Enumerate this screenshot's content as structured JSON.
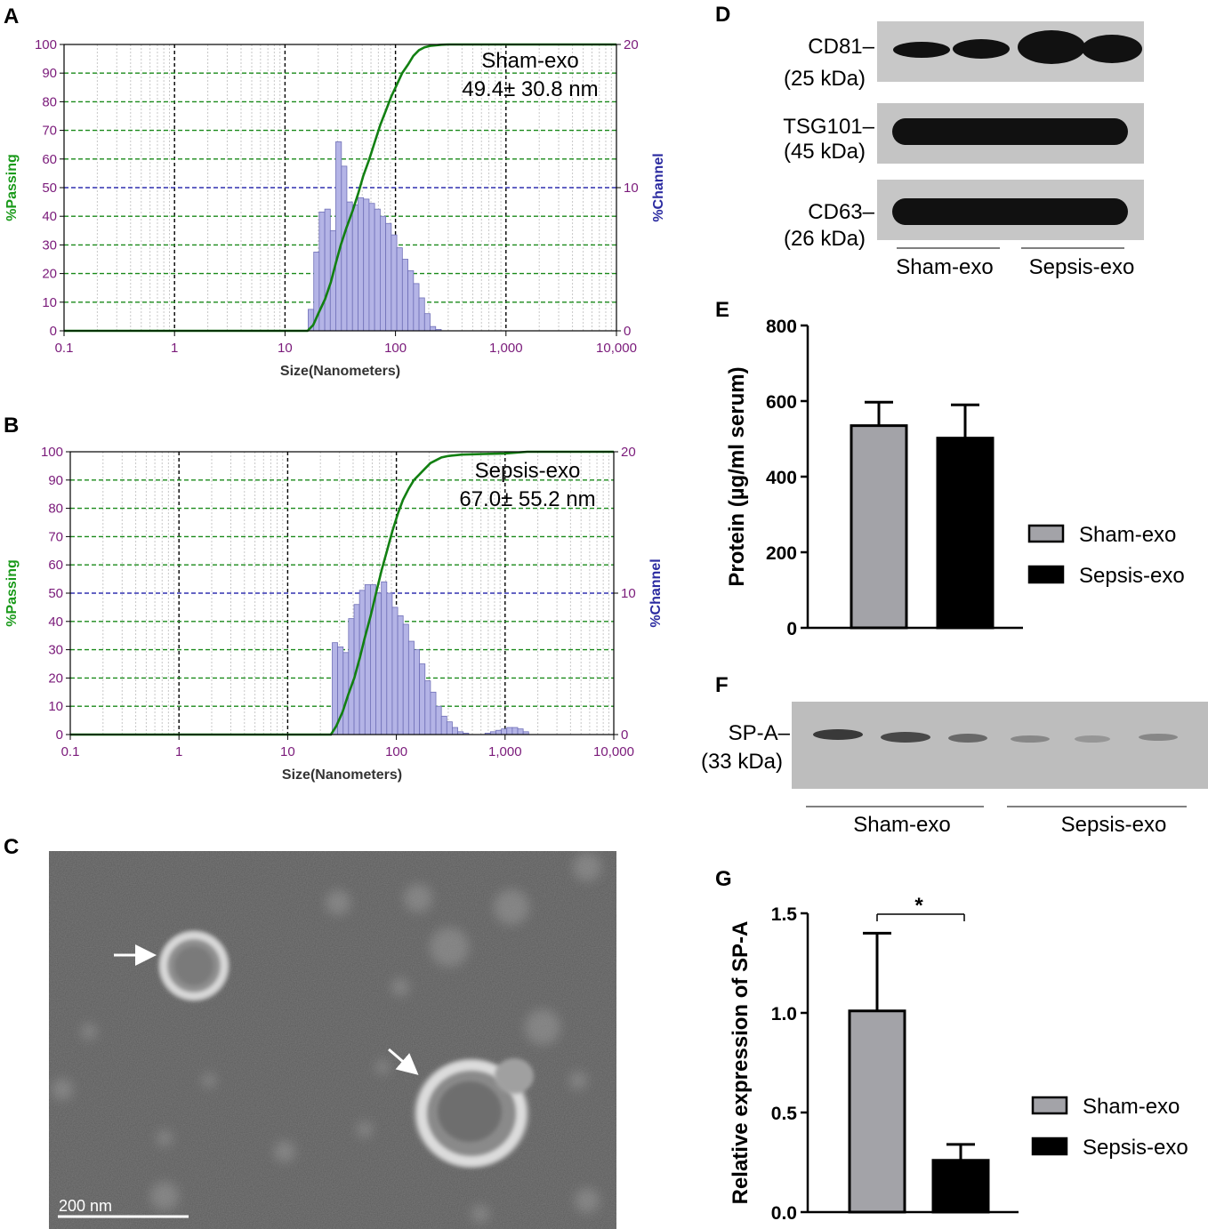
{
  "chart_data": [
    {
      "panel": "A",
      "type": "bar",
      "xscale": "log",
      "xlim": [
        0.1,
        10000
      ],
      "xticks": [
        "0.1",
        "1",
        "10",
        "100",
        "1,000",
        "10,000"
      ],
      "xlabel": "Size(Nanometers)",
      "ylabel_left": "%Passing",
      "ylim_left": [
        0,
        100
      ],
      "yticks_left": [
        "0",
        "10",
        "20",
        "30",
        "40",
        "50",
        "60",
        "70",
        "80",
        "90",
        "100"
      ],
      "ylabel_right": "%Channel",
      "ylim_right": [
        0,
        20
      ],
      "yticks_right": [
        "0",
        "10",
        "20"
      ],
      "annotation": [
        "Sham-exo",
        "49.4± 30.8 nm"
      ],
      "grid": true,
      "histogram": {
        "bin_edges": [
          16.2,
          18.2,
          20.4,
          22.9,
          25.7,
          28.8,
          32.4,
          36.3,
          40.8,
          45.8,
          51.4,
          57.7,
          64.7,
          72.7,
          81.6,
          91.6,
          102.8,
          115.4,
          129.6,
          145.5,
          163.3,
          183.3,
          205.8,
          231.0,
          259.4
        ],
        "channel_percent": [
          1.5,
          5.5,
          8.3,
          8.5,
          7.0,
          13.2,
          11.5,
          9.0,
          8.8,
          9.3,
          9.2,
          8.9,
          8.5,
          8.0,
          7.5,
          6.7,
          5.8,
          5.0,
          4.2,
          3.3,
          2.3,
          1.2,
          0.3,
          0.1
        ]
      },
      "cumulative": {
        "x": [
          0.1,
          16,
          18,
          20,
          23,
          26,
          29,
          32,
          36,
          41,
          46,
          51,
          58,
          65,
          73,
          82,
          92,
          103,
          115,
          130,
          145,
          163,
          183,
          206,
          231,
          260,
          300,
          400,
          600,
          1000,
          10000
        ],
        "y": [
          0,
          0,
          2,
          6,
          11,
          17,
          24,
          30,
          36,
          42,
          48,
          54,
          60,
          66,
          72,
          77,
          82,
          86,
          90,
          93,
          96,
          98,
          99,
          99.5,
          99.7,
          99.9,
          100,
          100,
          100,
          100,
          100
        ]
      }
    },
    {
      "panel": "B",
      "type": "bar",
      "xscale": "log",
      "xlim": [
        0.1,
        10000
      ],
      "xticks": [
        "0.1",
        "1",
        "10",
        "100",
        "1,000",
        "10,000"
      ],
      "xlabel": "Size(Nanometers)",
      "ylabel_left": "%Passing",
      "ylim_left": [
        0,
        100
      ],
      "yticks_left": [
        "0",
        "10",
        "20",
        "30",
        "40",
        "50",
        "60",
        "70",
        "80",
        "90",
        "100"
      ],
      "ylabel_right": "%Channel",
      "ylim_right": [
        0,
        20
      ],
      "yticks_right": [
        "0",
        "10",
        "20"
      ],
      "annotation": [
        "Sepsis-exo",
        "67.0± 55.2 nm"
      ],
      "grid": true,
      "histogram": {
        "bin_edges": [
          25.7,
          28.8,
          32.4,
          36.3,
          40.8,
          45.8,
          51.4,
          57.7,
          64.7,
          72.7,
          81.6,
          91.6,
          102.8,
          115.4,
          129.6,
          145.5,
          163.3,
          183.3,
          205.8,
          231.0,
          259.4,
          291.1,
          326.7,
          366.8,
          411.7,
          462.1,
          518.7,
          582.2,
          653.5,
          733.6,
          823.4,
          924.3,
          1037.5,
          1164.5,
          1307.1,
          1467.2,
          1646.9
        ],
        "channel_percent": [
          6.5,
          6.2,
          5.8,
          8.2,
          9.2,
          10.2,
          10.6,
          10.6,
          10.0,
          10.8,
          10.0,
          9.0,
          8.4,
          7.8,
          6.6,
          6.0,
          5.0,
          3.8,
          3.0,
          2.0,
          1.3,
          0.9,
          0.5,
          0.2,
          0.1,
          0,
          0,
          0,
          0.1,
          0.2,
          0.3,
          0.4,
          0.5,
          0.5,
          0.4,
          0.2
        ]
      },
      "cumulative": {
        "x": [
          0.1,
          25,
          28,
          32,
          36,
          41,
          46,
          51,
          58,
          65,
          73,
          82,
          92,
          103,
          115,
          130,
          145,
          163,
          183,
          206,
          231,
          260,
          300,
          400,
          600,
          1000,
          1600,
          10000
        ],
        "y": [
          0,
          0,
          3,
          8,
          14,
          20,
          27,
          34,
          42,
          50,
          58,
          65,
          72,
          78,
          83,
          87,
          90,
          92,
          94,
          96,
          97,
          98,
          98.5,
          99,
          99.2,
          99.4,
          100,
          100
        ]
      }
    },
    {
      "panel": "E",
      "type": "bar",
      "ylabel": "Protein (µg/ml serum)",
      "ylim": [
        0,
        800
      ],
      "yticks": [
        "0",
        "200",
        "400",
        "600",
        "800"
      ],
      "categories": [
        "Sham-exo",
        "Sepsis-exo"
      ],
      "values": [
        535,
        502
      ],
      "errors": [
        62,
        88
      ],
      "colors": [
        "#a3a3a8",
        "#000000"
      ],
      "legend": [
        "Sham-exo",
        "Sepsis-exo"
      ],
      "legend_placement": "right"
    },
    {
      "panel": "G",
      "type": "bar",
      "ylabel": "Relative expression of SP-A",
      "ylim": [
        0,
        1.5
      ],
      "yticks": [
        "0.0",
        "0.5",
        "1.0",
        "1.5"
      ],
      "categories": [
        "Sham-exo",
        "Sepsis-exo"
      ],
      "values": [
        1.01,
        0.26
      ],
      "errors": [
        0.39,
        0.08
      ],
      "colors": [
        "#a3a3a8",
        "#000000"
      ],
      "significance": "*",
      "legend": [
        "Sham-exo",
        "Sepsis-exo"
      ],
      "legend_placement": "right"
    }
  ],
  "panels": {
    "A": {
      "label": "A"
    },
    "B": {
      "label": "B"
    },
    "C": {
      "label": "C",
      "scale_bar": "200 nm"
    },
    "D": {
      "label": "D",
      "bands": [
        {
          "name": "CD81–",
          "kda": "(25 kDa)"
        },
        {
          "name": "TSG101–",
          "kda": "(45 kDa)"
        },
        {
          "name": "CD63–",
          "kda": "(26 kDa)"
        }
      ],
      "groups": [
        "Sham-exo",
        "Sepsis-exo"
      ]
    },
    "E": {
      "label": "E"
    },
    "F": {
      "label": "F",
      "band": {
        "name": "SP-A–",
        "kda": "(33 kDa)"
      },
      "groups": [
        "Sham-exo",
        "Sepsis-exo"
      ]
    },
    "G": {
      "label": "G"
    }
  }
}
